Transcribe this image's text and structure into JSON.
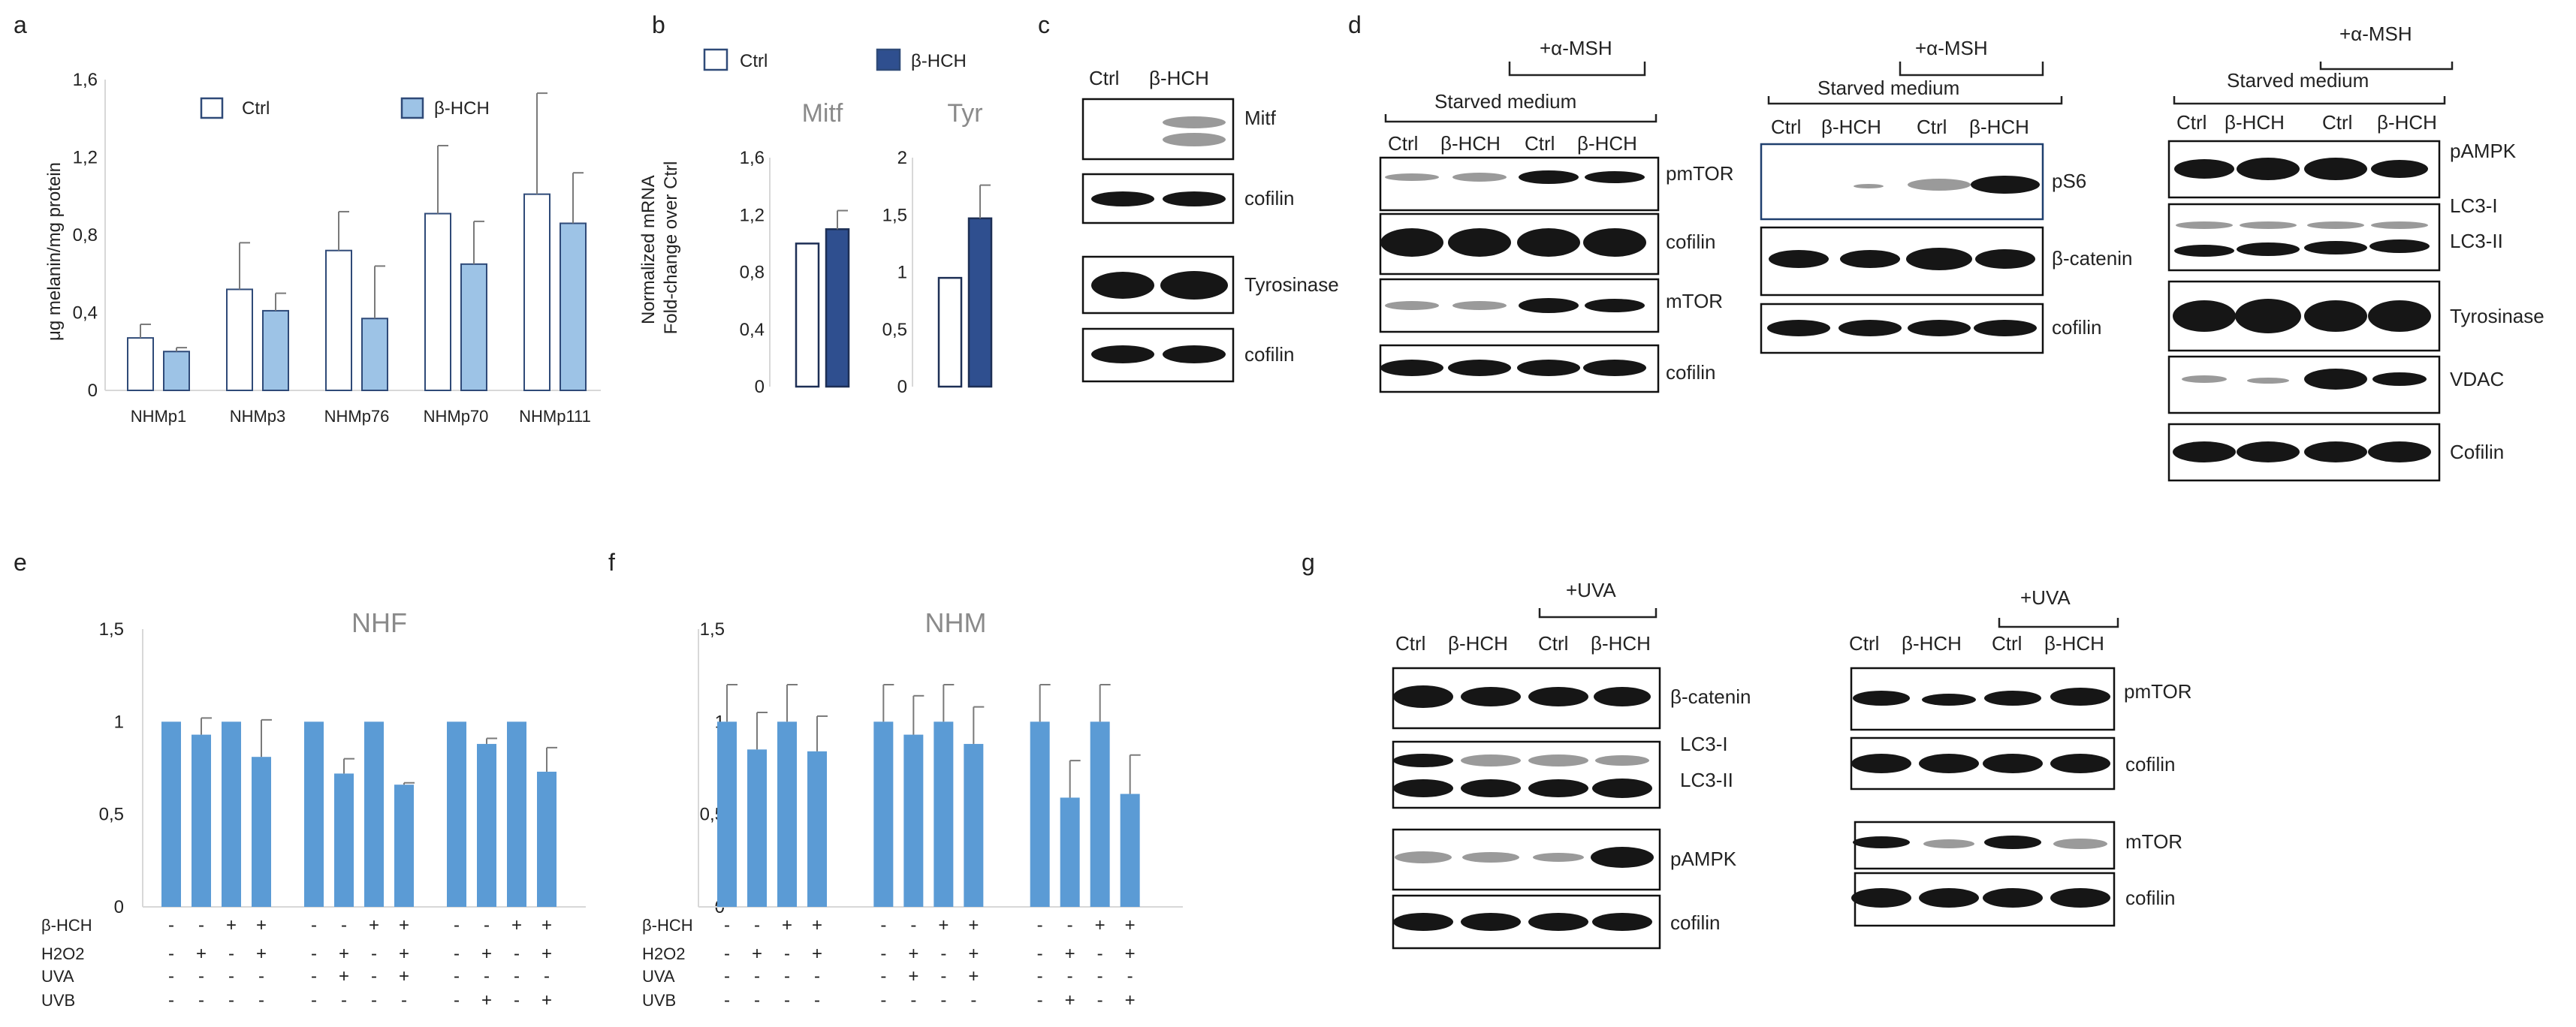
{
  "panels": {
    "a": "a",
    "b": "b",
    "c": "c",
    "d": "d",
    "e": "e",
    "f": "f",
    "g": "g"
  },
  "colors": {
    "ctrl_fill": "#ffffff",
    "ctrl_edge": "#2f4a78",
    "bhch_light": "#9dc3e6",
    "bhch_dark": "#2f4f8f",
    "bar_e_f": "#5b9bd5",
    "error": "#7a7a7a"
  },
  "legend": {
    "ctrl": "Ctrl",
    "bhch": "β-HCH"
  },
  "chart_data": [
    {
      "id": "a",
      "type": "bar",
      "ylabel": "μg melanin/mg protein",
      "categories": [
        "NHMp1",
        "NHMp3",
        "NHMp76",
        "NHMp70",
        "NHMp111"
      ],
      "ylim": [
        0,
        1.6
      ],
      "yticks": [
        "0",
        "0,4",
        "0,8",
        "1,2",
        "1,6"
      ],
      "yticks_values": [
        0,
        0.4,
        0.8,
        1.2,
        1.6
      ],
      "series": [
        {
          "name": "Ctrl",
          "values": [
            0.27,
            0.52,
            0.72,
            0.91,
            1.01
          ],
          "err": [
            0.07,
            0.24,
            0.2,
            0.35,
            0.52
          ]
        },
        {
          "name": "β-HCH",
          "values": [
            0.2,
            0.41,
            0.37,
            0.65,
            0.86
          ],
          "err": [
            0.02,
            0.09,
            0.27,
            0.22,
            0.26
          ]
        }
      ],
      "legend_position": "top"
    },
    {
      "id": "b1",
      "type": "bar",
      "title": "Mitf",
      "ylabel": "Normalized mRNA\nFold-change over Ctrl",
      "categories": [
        "Ctrl",
        "β-HCH"
      ],
      "ylim": [
        0,
        1.6
      ],
      "yticks": [
        "0",
        "0,4",
        "0,8",
        "1,2",
        "1,6"
      ],
      "yticks_values": [
        0,
        0.4,
        0.8,
        1.2,
        1.6
      ],
      "values": [
        1.0,
        1.1
      ],
      "err": [
        0,
        0.13
      ]
    },
    {
      "id": "b2",
      "type": "bar",
      "title": "Tyr",
      "categories": [
        "Ctrl",
        "β-HCH"
      ],
      "ylim": [
        0,
        2
      ],
      "yticks": [
        "0",
        "0,5",
        "1",
        "1,5",
        "2"
      ],
      "yticks_values": [
        0,
        0.5,
        1,
        1.5,
        2
      ],
      "values": [
        0.95,
        1.47
      ],
      "err": [
        0,
        0.29
      ]
    },
    {
      "id": "e",
      "type": "bar",
      "title": "NHF",
      "ylim": [
        0,
        1.5
      ],
      "yticks": [
        "0",
        "0,5",
        "1",
        "1,5"
      ],
      "yticks_values": [
        0,
        0.5,
        1,
        1.5
      ],
      "values": [
        1.0,
        0.93,
        1.0,
        0.81,
        1.0,
        0.72,
        1.0,
        0.66,
        1.0,
        0.88,
        1.0,
        0.73
      ],
      "err": [
        0,
        0.09,
        0,
        0.2,
        0,
        0.08,
        0,
        0.01,
        0,
        0.03,
        0,
        0.13
      ],
      "rows": [
        {
          "label": "β-HCH",
          "signs": [
            "-",
            "-",
            "+",
            "+",
            "-",
            "-",
            "+",
            "+",
            "-",
            "-",
            "+",
            "+"
          ]
        },
        {
          "label": "H2O2",
          "signs": [
            "-",
            "+",
            "-",
            "+",
            "-",
            "+",
            "-",
            "+",
            "-",
            "+",
            "-",
            "+"
          ]
        },
        {
          "label": "UVA",
          "signs": [
            "-",
            "-",
            "-",
            "-",
            "-",
            "+",
            "-",
            "+",
            "-",
            "-",
            "-",
            "-"
          ]
        },
        {
          "label": "UVB",
          "signs": [
            "-",
            "-",
            "-",
            "-",
            "-",
            "-",
            "-",
            "-",
            "-",
            "+",
            "-",
            "+"
          ]
        }
      ]
    },
    {
      "id": "f",
      "type": "bar",
      "title": "NHM",
      "ylim": [
        0,
        1.5
      ],
      "yticks": [
        "0",
        "0,5",
        "1",
        "1,5"
      ],
      "yticks_values": [
        0,
        0.5,
        1,
        1.5
      ],
      "values": [
        1.0,
        0.85,
        1.0,
        0.84,
        1.0,
        0.93,
        1.0,
        0.88,
        1.0,
        0.59,
        1.0,
        0.61
      ],
      "err": [
        0.2,
        0.2,
        0.2,
        0.19,
        0.2,
        0.21,
        0.2,
        0.2,
        0.2,
        0.2,
        0.2,
        0.21
      ],
      "rows": [
        {
          "label": "β-HCH",
          "signs": [
            "-",
            "-",
            "+",
            "+",
            "-",
            "-",
            "+",
            "+",
            "-",
            "-",
            "+",
            "+"
          ]
        },
        {
          "label": "H2O2",
          "signs": [
            "-",
            "+",
            "-",
            "+",
            "-",
            "+",
            "-",
            "+",
            "-",
            "+",
            "-",
            "+"
          ]
        },
        {
          "label": "UVA",
          "signs": [
            "-",
            "-",
            "-",
            "-",
            "-",
            "+",
            "-",
            "+",
            "-",
            "-",
            "-",
            "-"
          ]
        },
        {
          "label": "UVB",
          "signs": [
            "-",
            "-",
            "-",
            "-",
            "-",
            "-",
            "-",
            "-",
            "-",
            "+",
            "-",
            "+"
          ]
        }
      ]
    }
  ],
  "blots": {
    "c": {
      "lanes": [
        "Ctrl",
        "β-HCH"
      ],
      "bands": [
        "Mitf",
        "cofilin",
        "Tyrosinase",
        "cofilin"
      ]
    },
    "d": {
      "bracket": "+α-MSH",
      "medium": "Starved medium",
      "lanes": [
        "Ctrl",
        "β-HCH",
        "Ctrl",
        "β-HCH"
      ],
      "panel1": [
        "pmTOR",
        "cofilin",
        "mTOR",
        "cofilin"
      ],
      "panel2": [
        "pS6",
        "β-catenin",
        "cofilin"
      ],
      "panel3": [
        "pAMPK",
        "LC3-I",
        "LC3-II",
        "Tyrosinase",
        "VDAC",
        "Cofilin"
      ]
    },
    "g": {
      "bracket": "+UVA",
      "lanes": [
        "Ctrl",
        "β-HCH",
        "Ctrl",
        "β-HCH"
      ],
      "left": [
        "β-catenin",
        "LC3-I",
        "LC3-II",
        "pAMPK",
        "cofilin"
      ],
      "right": [
        "pmTOR",
        "cofilin",
        "mTOR",
        "cofilin"
      ]
    }
  }
}
